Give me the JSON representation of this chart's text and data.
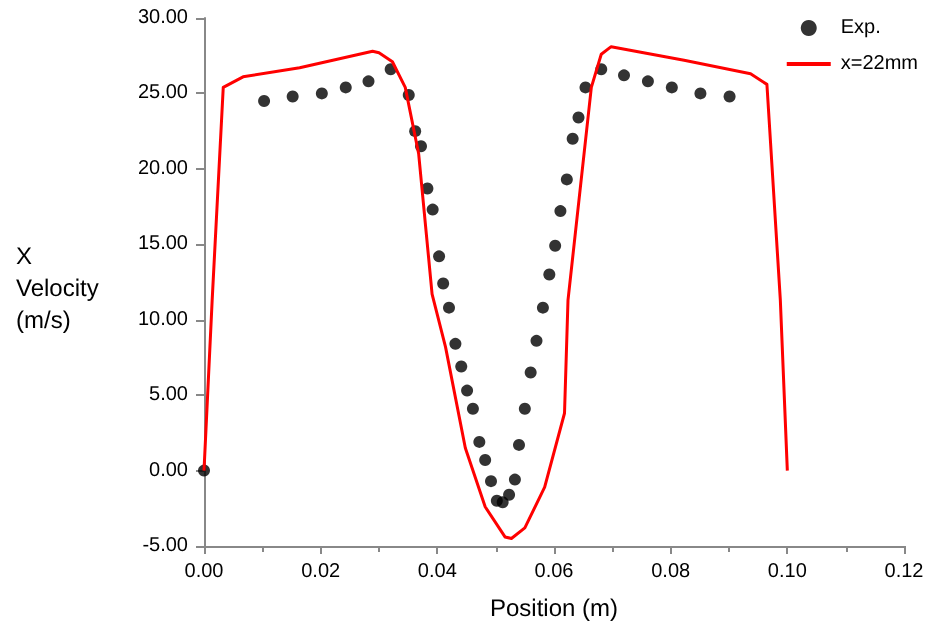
{
  "chart_data": {
    "type": "line",
    "xlabel": "Position (m)",
    "ylabel": "X Velocity (m/s)",
    "xlim": [
      0,
      0.12
    ],
    "xticks": [
      {
        "value": 0,
        "label": "0.00"
      },
      {
        "value": 0.02,
        "label": "0.02"
      },
      {
        "value": 0.04,
        "label": "0.04"
      },
      {
        "value": 0.06,
        "label": "0.06"
      },
      {
        "value": 0.08,
        "label": "0.08"
      },
      {
        "value": 0.1,
        "label": "0.10"
      },
      {
        "value": 0.12,
        "label": "0.12"
      }
    ],
    "ylim": [
      -5,
      30
    ],
    "yticks": [
      {
        "value": -5,
        "label": "-5.00"
      },
      {
        "value": 0,
        "label": "0.00"
      },
      {
        "value": 5,
        "label": "5.00"
      },
      {
        "value": 10,
        "label": "10.00"
      },
      {
        "value": 15,
        "label": "15.00"
      },
      {
        "value": 20,
        "label": "20.00"
      },
      {
        "value": 25,
        "label": "25.00"
      },
      {
        "value": 30,
        "label": "30.00"
      }
    ],
    "grid": false,
    "legend": "top right",
    "series": [
      {
        "name": "Exp.",
        "type": "scatter",
        "marker": "circle",
        "color": "#000000",
        "x": [
          0,
          0.0103,
          0.0152,
          0.0202,
          0.0243,
          0.0282,
          0.032,
          0.0351,
          0.0362,
          0.0372,
          0.0383,
          0.0392,
          0.0403,
          0.041,
          0.042,
          0.0431,
          0.0441,
          0.0451,
          0.0461,
          0.0472,
          0.0482,
          0.0492,
          0.0502,
          0.0512,
          0.0523,
          0.0533,
          0.054,
          0.055,
          0.056,
          0.057,
          0.0581,
          0.0592,
          0.0602,
          0.0611,
          0.0622,
          0.0632,
          0.0642,
          0.0654,
          0.0681,
          0.072,
          0.0761,
          0.0802,
          0.0851,
          0.0901
        ],
        "values": [
          0,
          24.5,
          24.8,
          25.0,
          25.4,
          25.8,
          26.6,
          24.9,
          22.5,
          21.5,
          18.7,
          17.3,
          14.2,
          12.4,
          10.8,
          8.4,
          6.9,
          5.3,
          4.1,
          1.9,
          0.7,
          -0.7,
          -2.0,
          -2.1,
          -1.6,
          -0.6,
          1.7,
          4.1,
          6.5,
          8.6,
          10.8,
          13.0,
          14.9,
          17.2,
          19.3,
          22.0,
          23.4,
          25.4,
          26.6,
          26.2,
          25.8,
          25.4,
          25.0,
          24.8
        ]
      },
      {
        "name": "x=22mm",
        "marker": "none",
        "line_style": "solid",
        "color": "#ff0000",
        "x": [
          0,
          0.0014,
          0.0033,
          0.0067,
          0.0164,
          0.0289,
          0.03,
          0.0323,
          0.0345,
          0.0368,
          0.0391,
          0.0414,
          0.0448,
          0.0482,
          0.0516,
          0.0527,
          0.055,
          0.0584,
          0.0618,
          0.0624,
          0.0664,
          0.0681,
          0.0698,
          0.0823,
          0.0937,
          0.0965,
          0.0988,
          0.1
        ],
        "values": [
          0,
          11.3,
          25.4,
          26.1,
          26.7,
          27.8,
          27.7,
          27.1,
          25.4,
          21.0,
          11.7,
          8.2,
          1.5,
          -2.4,
          -4.4,
          -4.5,
          -3.8,
          -1.1,
          3.8,
          11.3,
          25.4,
          27.6,
          28.1,
          27.2,
          26.3,
          25.6,
          11.3,
          0
        ]
      }
    ]
  }
}
